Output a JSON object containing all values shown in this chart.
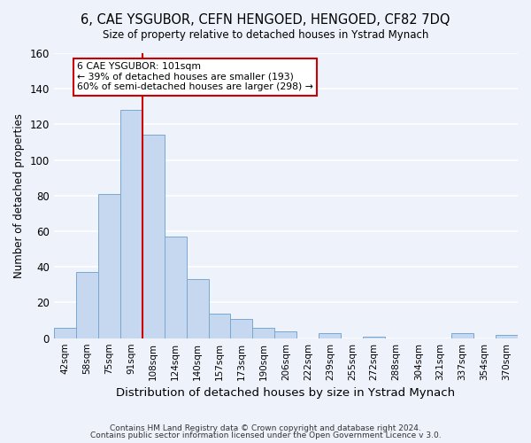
{
  "title": "6, CAE YSGUBOR, CEFN HENGOED, HENGOED, CF82 7DQ",
  "subtitle": "Size of property relative to detached houses in Ystrad Mynach",
  "xlabel": "Distribution of detached houses by size in Ystrad Mynach",
  "ylabel": "Number of detached properties",
  "bin_labels": [
    "42sqm",
    "58sqm",
    "75sqm",
    "91sqm",
    "108sqm",
    "124sqm",
    "140sqm",
    "157sqm",
    "173sqm",
    "190sqm",
    "206sqm",
    "222sqm",
    "239sqm",
    "255sqm",
    "272sqm",
    "288sqm",
    "304sqm",
    "321sqm",
    "337sqm",
    "354sqm",
    "370sqm"
  ],
  "bar_values": [
    6,
    37,
    81,
    128,
    114,
    57,
    33,
    14,
    11,
    6,
    4,
    0,
    3,
    0,
    1,
    0,
    0,
    0,
    3,
    0,
    2
  ],
  "bar_color": "#c5d8f0",
  "bar_edge_color": "#7aa8d0",
  "vline_color": "#cc0000",
  "vline_x_index": 3.5,
  "ylim": [
    0,
    160
  ],
  "yticks": [
    0,
    20,
    40,
    60,
    80,
    100,
    120,
    140,
    160
  ],
  "annotation_text": "6 CAE YSGUBOR: 101sqm\n← 39% of detached houses are smaller (193)\n60% of semi-detached houses are larger (298) →",
  "annotation_box_edgecolor": "#cc0000",
  "footer_line1": "Contains HM Land Registry data © Crown copyright and database right 2024.",
  "footer_line2": "Contains public sector information licensed under the Open Government Licence v 3.0.",
  "background_color": "#eef2fb",
  "grid_color": "#ffffff"
}
